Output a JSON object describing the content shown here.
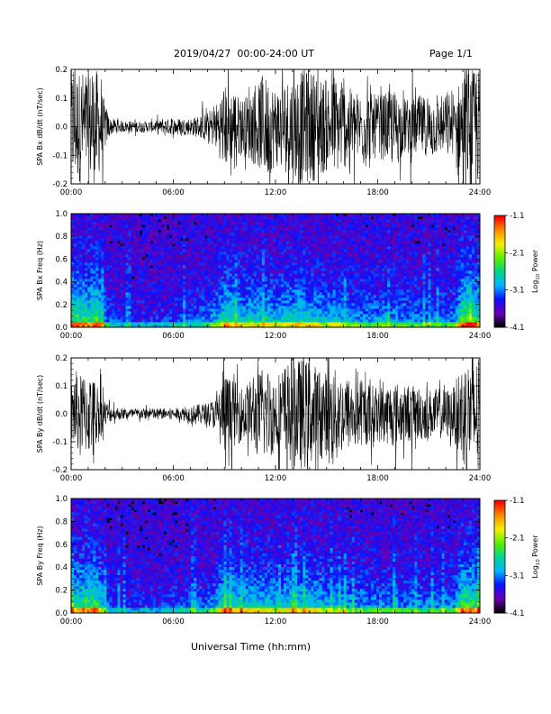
{
  "header": {
    "date_range": "2019/04/27  00:00-24:00 UT",
    "page": "Page 1/1"
  },
  "xaxis_title": "Universal Time (hh:mm)",
  "colorbar": {
    "label": "Log10 Power",
    "label_main": "Log",
    "label_sub": "10",
    "label_rest": " Power",
    "range": [
      -4.1,
      -1.1
    ],
    "tick_values": [
      -1.1,
      -2.1,
      -3.1,
      -4.1
    ],
    "tick_labels": [
      "-1.1",
      "-2.1",
      "-3.1",
      "-4.1"
    ],
    "colors": [
      "#000000",
      "#6a00b4",
      "#0a10ff",
      "#00b4ff",
      "#00d48a",
      "#5aee00",
      "#f0f000",
      "#ff8c00",
      "#ff0000"
    ]
  },
  "chart_data": [
    {
      "type": "line",
      "ylabel": "SPA Bx dB/dt (nT/sec)",
      "xlim": [
        0,
        24
      ],
      "ylim": [
        -0.2,
        0.2
      ],
      "x_tick_labels": [
        "00:00",
        "06:00",
        "12:00",
        "18:00",
        "24:00"
      ],
      "y_tick_labels": [
        "0.2",
        "0.1",
        "0.0",
        "-0.1",
        "-0.2"
      ],
      "y_tick_values": [
        0.2,
        0.1,
        0.0,
        -0.1,
        -0.2
      ],
      "envelope": {
        "x": [
          0,
          0.5,
          1.0,
          1.5,
          2.0,
          2.3,
          3,
          4,
          5,
          6,
          7,
          8,
          8.5,
          9,
          9.5,
          10,
          10.5,
          11,
          11.5,
          12,
          12.5,
          13,
          13.5,
          14,
          14.5,
          15,
          15.5,
          16,
          16.5,
          17,
          17.5,
          18,
          18.5,
          19,
          19.5,
          20,
          20.5,
          21,
          21.5,
          22,
          22.5,
          23,
          23.5,
          24
        ],
        "y": [
          0.2,
          0.2,
          0.2,
          0.2,
          0.08,
          0.03,
          0.02,
          0.02,
          0.02,
          0.03,
          0.03,
          0.05,
          0.08,
          0.15,
          0.13,
          0.1,
          0.12,
          0.15,
          0.18,
          0.14,
          0.16,
          0.19,
          0.2,
          0.2,
          0.18,
          0.16,
          0.17,
          0.15,
          0.13,
          0.12,
          0.12,
          0.11,
          0.12,
          0.13,
          0.1,
          0.1,
          0.11,
          0.1,
          0.1,
          0.09,
          0.1,
          0.2,
          0.2,
          0.2
        ]
      }
    },
    {
      "type": "heatmap",
      "ylabel": "SPA Bx Freq (Hz)",
      "xlim": [
        0,
        24
      ],
      "ylim": [
        0,
        1.0
      ],
      "x_tick_labels": [
        "00:00",
        "06:00",
        "12:00",
        "18:00",
        "24:00"
      ],
      "y_tick_labels": [
        "1.0",
        "0.8",
        "0.6",
        "0.4",
        "0.2",
        "0.0"
      ],
      "y_tick_values": [
        1.0,
        0.8,
        0.6,
        0.4,
        0.2,
        0.0
      ],
      "activity": {
        "x": [
          0,
          0.5,
          1.0,
          1.5,
          2.0,
          2.3,
          3,
          4,
          5,
          6,
          7,
          8,
          8.5,
          9,
          9.5,
          10,
          10.5,
          11,
          11.5,
          12,
          12.5,
          13,
          13.5,
          14,
          14.5,
          15,
          15.5,
          16,
          16.5,
          17,
          17.5,
          18,
          18.5,
          19,
          19.5,
          20,
          20.5,
          21,
          21.5,
          22,
          22.5,
          23,
          23.5,
          24
        ],
        "y": [
          0.8,
          0.75,
          0.7,
          0.85,
          0.4,
          0.2,
          0.15,
          0.15,
          0.15,
          0.2,
          0.25,
          0.35,
          0.45,
          0.7,
          0.65,
          0.55,
          0.6,
          0.55,
          0.6,
          0.5,
          0.55,
          0.6,
          0.65,
          0.6,
          0.55,
          0.5,
          0.55,
          0.45,
          0.45,
          0.4,
          0.4,
          0.4,
          0.42,
          0.4,
          0.38,
          0.38,
          0.36,
          0.35,
          0.35,
          0.35,
          0.38,
          0.85,
          0.8,
          0.75
        ]
      }
    },
    {
      "type": "line",
      "ylabel": "SPA By dB/dt (nT/sec)",
      "xlim": [
        0,
        24
      ],
      "ylim": [
        -0.2,
        0.2
      ],
      "x_tick_labels": [
        "00:00",
        "06:00",
        "12:00",
        "18:00",
        "24:00"
      ],
      "y_tick_labels": [
        "0.2",
        "0.1",
        "0.0",
        "-0.1",
        "-0.2"
      ],
      "y_tick_values": [
        0.2,
        0.1,
        0.0,
        -0.1,
        -0.2
      ],
      "envelope": {
        "x": [
          0,
          0.5,
          1.0,
          1.5,
          2.0,
          2.3,
          3,
          4,
          5,
          6,
          7,
          8,
          8.5,
          9,
          9.5,
          10,
          10.5,
          11,
          11.5,
          12,
          12.5,
          13,
          13.5,
          14,
          14.5,
          15,
          15.5,
          16,
          16.5,
          17,
          17.5,
          18,
          18.5,
          19,
          19.5,
          20,
          20.5,
          21,
          21.5,
          22,
          22.5,
          23,
          23.5,
          24
        ],
        "y": [
          0.12,
          0.14,
          0.15,
          0.12,
          0.05,
          0.03,
          0.02,
          0.02,
          0.02,
          0.02,
          0.03,
          0.04,
          0.06,
          0.15,
          0.12,
          0.1,
          0.12,
          0.15,
          0.17,
          0.14,
          0.18,
          0.2,
          0.2,
          0.19,
          0.17,
          0.15,
          0.16,
          0.14,
          0.13,
          0.12,
          0.11,
          0.1,
          0.11,
          0.12,
          0.1,
          0.1,
          0.1,
          0.09,
          0.09,
          0.09,
          0.1,
          0.2,
          0.2,
          0.2
        ]
      }
    },
    {
      "type": "heatmap",
      "ylabel": "SPA By Freq (Hz)",
      "xlim": [
        0,
        24
      ],
      "ylim": [
        0,
        1.0
      ],
      "x_tick_labels": [
        "00:00",
        "06:00",
        "12:00",
        "18:00",
        "24:00"
      ],
      "y_tick_labels": [
        "1.0",
        "0.8",
        "0.6",
        "0.4",
        "0.2",
        "0.0"
      ],
      "y_tick_values": [
        1.0,
        0.8,
        0.6,
        0.4,
        0.2,
        0.0
      ],
      "activity": {
        "x": [
          0,
          0.5,
          1.0,
          1.5,
          2.0,
          2.3,
          3,
          4,
          5,
          6,
          7,
          8,
          8.5,
          9,
          9.5,
          10,
          10.5,
          11,
          11.5,
          12,
          12.5,
          13,
          13.5,
          14,
          14.5,
          15,
          15.5,
          16,
          16.5,
          17,
          17.5,
          18,
          18.5,
          19,
          19.5,
          20,
          20.5,
          21,
          21.5,
          22,
          22.5,
          23,
          23.5,
          24
        ],
        "y": [
          0.7,
          0.7,
          0.75,
          0.8,
          0.35,
          0.2,
          0.15,
          0.15,
          0.15,
          0.2,
          0.25,
          0.3,
          0.45,
          0.7,
          0.65,
          0.6,
          0.6,
          0.55,
          0.6,
          0.5,
          0.55,
          0.6,
          0.6,
          0.6,
          0.55,
          0.5,
          0.5,
          0.45,
          0.42,
          0.4,
          0.38,
          0.38,
          0.4,
          0.4,
          0.36,
          0.36,
          0.35,
          0.34,
          0.34,
          0.34,
          0.36,
          0.8,
          0.75,
          0.7
        ]
      }
    }
  ]
}
